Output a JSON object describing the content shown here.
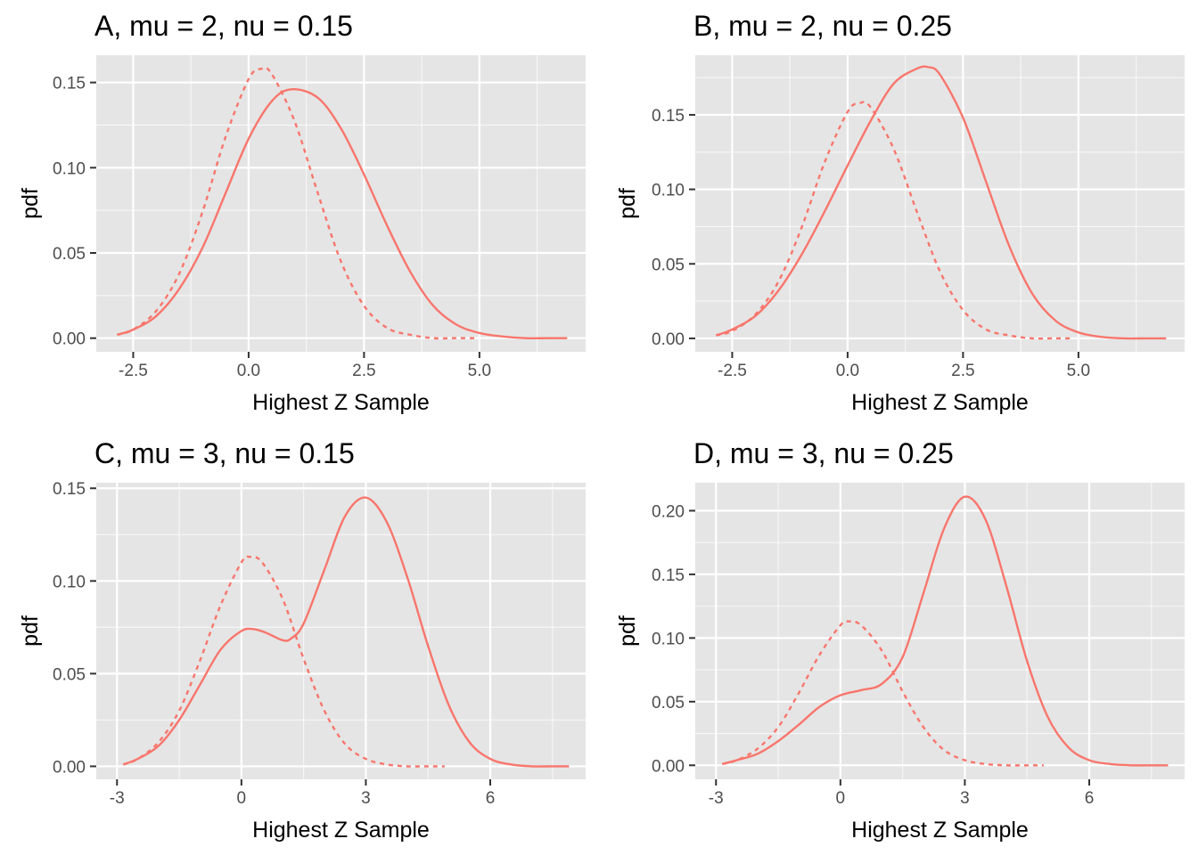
{
  "colors": {
    "line": "#f8766d",
    "panel_bg": "#e5e5e5",
    "grid": "#ffffff",
    "tick": "#333333",
    "tick_label": "#4d4d4d",
    "text": "#000000"
  },
  "chart_data": [
    {
      "panel": "A",
      "type": "line",
      "title": "A, mu = 2, nu = 0.15",
      "xlabel": "Highest Z Sample",
      "ylabel": "pdf",
      "xlim": [
        -3.3,
        7.3
      ],
      "ylim": [
        -0.008,
        0.166
      ],
      "xticks": [
        -2.5,
        0.0,
        2.5,
        5.0
      ],
      "xtick_labels": [
        "-2.5",
        "0.0",
        "2.5",
        "5.0"
      ],
      "yticks": [
        0.0,
        0.05,
        0.1,
        0.15
      ],
      "ytick_labels": [
        "0.00",
        "0.05",
        "0.10",
        "0.15"
      ],
      "grid": true,
      "series": [
        {
          "linestyle": "solid",
          "color": "#f8766d",
          "x": [
            -2.85,
            -2.5,
            -2.0,
            -1.5,
            -1.0,
            -0.5,
            0.0,
            0.5,
            0.93,
            1.5,
            2.0,
            2.5,
            3.0,
            3.5,
            4.0,
            4.5,
            5.0,
            5.5,
            6.0,
            6.5,
            6.9
          ],
          "y": [
            0.002,
            0.005,
            0.013,
            0.029,
            0.053,
            0.085,
            0.117,
            0.139,
            0.146,
            0.141,
            0.123,
            0.096,
            0.066,
            0.039,
            0.019,
            0.008,
            0.003,
            0.001,
            0.0,
            0.0,
            0.0
          ]
        },
        {
          "linestyle": "dashed",
          "color": "#f8766d",
          "x": [
            -2.85,
            -2.5,
            -2.0,
            -1.5,
            -1.0,
            -0.5,
            0.0,
            0.27,
            0.5,
            1.0,
            1.5,
            2.0,
            2.5,
            3.0,
            3.5,
            4.0,
            4.5,
            4.9
          ],
          "y": [
            0.002,
            0.005,
            0.016,
            0.038,
            0.074,
            0.118,
            0.152,
            0.158,
            0.155,
            0.127,
            0.085,
            0.045,
            0.019,
            0.006,
            0.002,
            0.0,
            0.0,
            0.0
          ]
        }
      ]
    },
    {
      "panel": "B",
      "type": "line",
      "title": "B, mu = 2, nu = 0.25",
      "xlabel": "Highest Z Sample",
      "ylabel": "pdf",
      "xlim": [
        -3.3,
        7.3
      ],
      "ylim": [
        -0.009,
        0.19
      ],
      "xticks": [
        -2.5,
        0.0,
        2.5,
        5.0
      ],
      "xtick_labels": [
        "-2.5",
        "0.0",
        "2.5",
        "5.0"
      ],
      "yticks": [
        0.0,
        0.05,
        0.1,
        0.15
      ],
      "ytick_labels": [
        "0.00",
        "0.05",
        "0.10",
        "0.15"
      ],
      "grid": true,
      "series": [
        {
          "linestyle": "solid",
          "color": "#f8766d",
          "x": [
            -2.85,
            -2.5,
            -2.0,
            -1.5,
            -1.0,
            -0.5,
            0.0,
            0.5,
            1.0,
            1.5,
            1.75,
            2.0,
            2.5,
            3.0,
            3.5,
            4.0,
            4.5,
            5.0,
            5.5,
            6.0,
            6.5,
            6.9
          ],
          "y": [
            0.002,
            0.006,
            0.015,
            0.032,
            0.056,
            0.085,
            0.116,
            0.146,
            0.171,
            0.181,
            0.182,
            0.177,
            0.148,
            0.105,
            0.062,
            0.03,
            0.012,
            0.004,
            0.001,
            0.0,
            0.0,
            0.0
          ]
        },
        {
          "linestyle": "dashed",
          "color": "#f8766d",
          "x": [
            -2.85,
            -2.5,
            -2.0,
            -1.5,
            -1.0,
            -0.5,
            0.0,
            0.27,
            0.5,
            1.0,
            1.5,
            2.0,
            2.5,
            3.0,
            3.5,
            4.0,
            4.5,
            4.9
          ],
          "y": [
            0.002,
            0.005,
            0.016,
            0.038,
            0.074,
            0.118,
            0.152,
            0.158,
            0.155,
            0.127,
            0.085,
            0.045,
            0.019,
            0.006,
            0.002,
            0.0,
            0.0,
            0.0
          ]
        }
      ]
    },
    {
      "panel": "C",
      "type": "line",
      "title": "C, mu = 3, nu = 0.15",
      "xlabel": "Highest Z Sample",
      "ylabel": "pdf",
      "xlim": [
        -3.5,
        8.3
      ],
      "ylim": [
        -0.007,
        0.153
      ],
      "xticks": [
        -3,
        0,
        3,
        6
      ],
      "xtick_labels": [
        "-3",
        "0",
        "3",
        "6"
      ],
      "yticks": [
        0.0,
        0.05,
        0.1,
        0.15
      ],
      "ytick_labels": [
        "0.00",
        "0.05",
        "0.10",
        "0.15"
      ],
      "grid": true,
      "series": [
        {
          "linestyle": "solid",
          "color": "#f8766d",
          "x": [
            -2.85,
            -2.5,
            -2.0,
            -1.5,
            -1.0,
            -0.5,
            0.0,
            0.3,
            0.6,
            1.0,
            1.2,
            1.5,
            2.0,
            2.5,
            3.0,
            3.5,
            4.0,
            4.5,
            5.0,
            5.5,
            6.0,
            6.5,
            7.0,
            7.5,
            7.9
          ],
          "y": [
            0.001,
            0.004,
            0.011,
            0.025,
            0.044,
            0.063,
            0.073,
            0.074,
            0.072,
            0.068,
            0.069,
            0.077,
            0.106,
            0.135,
            0.145,
            0.132,
            0.102,
            0.065,
            0.033,
            0.013,
            0.004,
            0.001,
            0.0,
            0.0,
            0.0
          ]
        },
        {
          "linestyle": "dashed",
          "color": "#f8766d",
          "x": [
            -2.85,
            -2.5,
            -2.0,
            -1.5,
            -1.0,
            -0.5,
            0.0,
            0.2,
            0.5,
            1.0,
            1.5,
            2.0,
            2.5,
            3.0,
            3.5,
            4.0,
            4.5,
            4.9
          ],
          "y": [
            0.001,
            0.004,
            0.013,
            0.03,
            0.057,
            0.087,
            0.11,
            0.113,
            0.11,
            0.09,
            0.058,
            0.03,
            0.012,
            0.004,
            0.001,
            0.0,
            0.0,
            0.0
          ]
        }
      ]
    },
    {
      "panel": "D",
      "type": "line",
      "title": "D, mu = 3, nu = 0.25",
      "xlabel": "Highest Z Sample",
      "ylabel": "pdf",
      "xlim": [
        -3.5,
        8.3
      ],
      "ylim": [
        -0.011,
        0.222
      ],
      "xticks": [
        -3,
        0,
        3,
        6
      ],
      "xtick_labels": [
        "-3",
        "0",
        "3",
        "6"
      ],
      "yticks": [
        0.0,
        0.05,
        0.1,
        0.15,
        0.2
      ],
      "ytick_labels": [
        "0.00",
        "0.05",
        "0.10",
        "0.15",
        "0.20"
      ],
      "grid": true,
      "series": [
        {
          "linestyle": "solid",
          "color": "#f8766d",
          "x": [
            -2.85,
            -2.5,
            -2.0,
            -1.5,
            -1.0,
            -0.5,
            0.0,
            0.5,
            1.0,
            1.5,
            2.0,
            2.5,
            3.0,
            3.5,
            4.0,
            4.5,
            5.0,
            5.5,
            6.0,
            6.5,
            7.0,
            7.5,
            7.9
          ],
          "y": [
            0.001,
            0.004,
            0.009,
            0.019,
            0.032,
            0.046,
            0.055,
            0.059,
            0.064,
            0.085,
            0.135,
            0.186,
            0.211,
            0.193,
            0.141,
            0.082,
            0.038,
            0.014,
            0.004,
            0.001,
            0.0,
            0.0,
            0.0
          ]
        },
        {
          "linestyle": "dashed",
          "color": "#f8766d",
          "x": [
            -2.85,
            -2.5,
            -2.0,
            -1.5,
            -1.0,
            -0.5,
            0.0,
            0.2,
            0.5,
            1.0,
            1.5,
            2.0,
            2.5,
            3.0,
            3.5,
            4.0,
            4.5,
            4.9
          ],
          "y": [
            0.001,
            0.004,
            0.013,
            0.03,
            0.057,
            0.087,
            0.11,
            0.113,
            0.11,
            0.09,
            0.058,
            0.03,
            0.012,
            0.004,
            0.001,
            0.0,
            0.0,
            0.0
          ]
        }
      ]
    }
  ]
}
